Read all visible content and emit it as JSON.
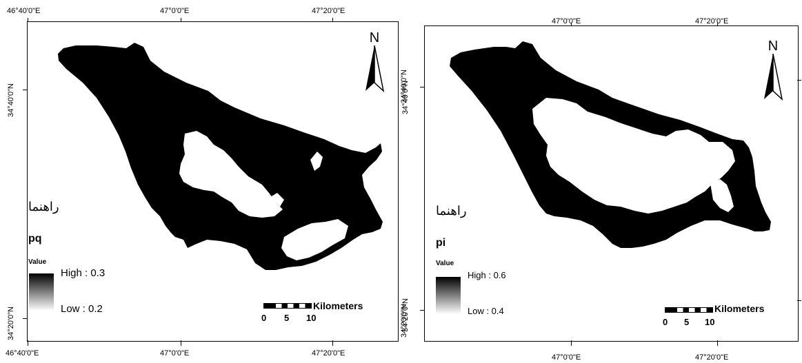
{
  "maps": [
    {
      "legend_title": "راهنما",
      "layer_name": "pq",
      "value_label": "Value",
      "high_label": "High : 0.3",
      "low_label": "Low : 0.2",
      "north_label": "N",
      "scale_unit": "Kilometers",
      "scale_ticks": [
        "0",
        "5",
        "10"
      ],
      "top_ticks": [
        "46°40'0\"E",
        "47°0'0\"E",
        "47°20'0\"E"
      ],
      "bottom_ticks": [
        "46°40'0\"E",
        "47°0'0\"E",
        "47°20'0\"E"
      ],
      "left_ticks": [
        "34°40'0\"N",
        "34°20'0\"N"
      ],
      "right_ticks": [
        "34°40'0\"N",
        "34°20'0\"N"
      ]
    },
    {
      "legend_title": "راهنما",
      "layer_name": "pi",
      "value_label": "Value",
      "high_label": "High : 0.6",
      "low_label": "Low : 0.4",
      "north_label": "N",
      "scale_unit": "Kilometers",
      "scale_ticks": [
        "0",
        "5",
        "10"
      ],
      "top_ticks": [
        "47°0'0\"E",
        "47°20'0\"E"
      ],
      "bottom_ticks": [
        "47°0'0\"E",
        "47°20'0\"E"
      ],
      "left_ticks": [
        "34°40'0\"N",
        "34°20'0\"N"
      ]
    }
  ],
  "colors": {
    "region_fill": "#000000",
    "background": "#ffffff"
  }
}
